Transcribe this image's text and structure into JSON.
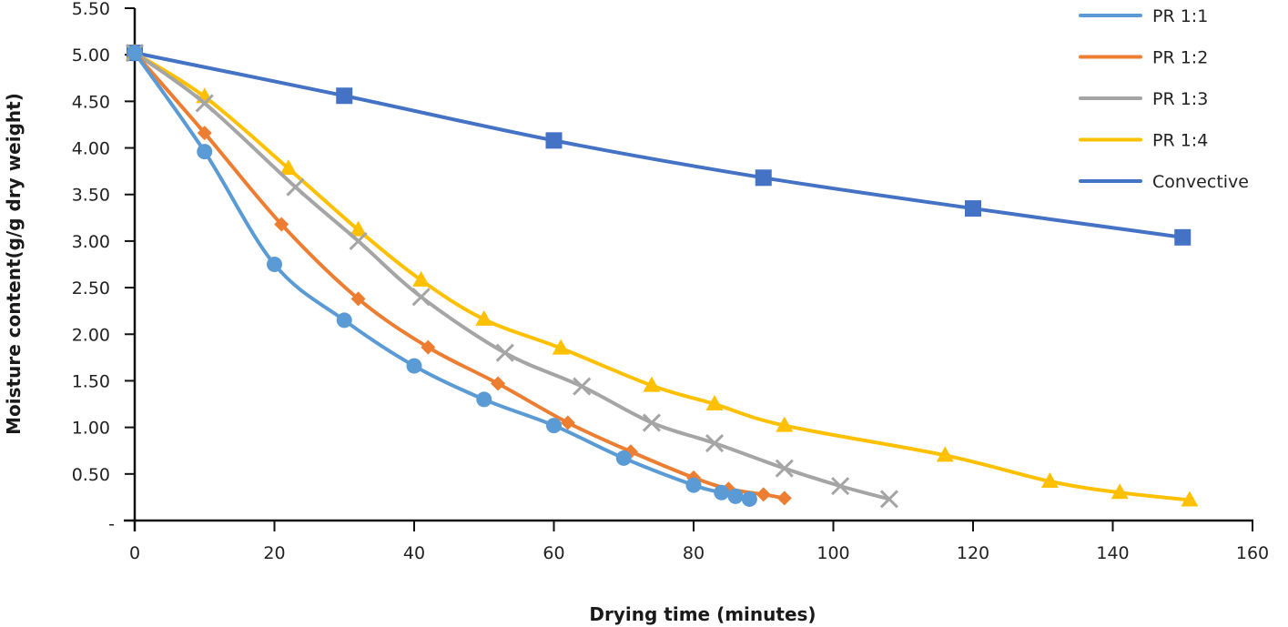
{
  "chart_data": {
    "type": "line",
    "title": "",
    "xlabel": "Drying time (minutes)",
    "ylabel": "Moisture content(g/g dry weight)",
    "xlim": [
      0,
      160
    ],
    "ylim": [
      0,
      5.5
    ],
    "x_ticks": [
      0,
      20,
      40,
      60,
      80,
      100,
      120,
      140,
      160
    ],
    "x_tick_labels": [
      "0",
      "20",
      "40",
      "60",
      "80",
      "100",
      "120",
      "140",
      "160"
    ],
    "y_ticks": [
      0,
      0.5,
      1.0,
      1.5,
      2.0,
      2.5,
      3.0,
      3.5,
      4.0,
      4.5,
      5.0,
      5.5
    ],
    "y_tick_labels": [
      "-",
      "0.50",
      "1.00",
      "1.50",
      "2.00",
      "2.50",
      "3.00",
      "3.50",
      "4.00",
      "4.50",
      "5.00",
      "5.50"
    ],
    "grid": false,
    "legend_position": "top-right",
    "smoothed": true,
    "series": [
      {
        "name": "PR 1:1",
        "color": "#5B9BD5",
        "marker": "circle",
        "x": [
          0,
          10,
          20,
          30,
          40,
          50,
          60,
          70,
          80,
          84,
          86,
          88
        ],
        "y": [
          5.02,
          3.96,
          2.75,
          2.15,
          1.66,
          1.3,
          1.02,
          0.67,
          0.38,
          0.3,
          0.26,
          0.23
        ]
      },
      {
        "name": "PR 1:2",
        "color": "#ED7D31",
        "marker": "diamond",
        "x": [
          0,
          10,
          21,
          32,
          42,
          52,
          62,
          71,
          80,
          85,
          90,
          93
        ],
        "y": [
          5.02,
          4.16,
          3.18,
          2.38,
          1.86,
          1.47,
          1.05,
          0.74,
          0.46,
          0.34,
          0.28,
          0.24
        ]
      },
      {
        "name": "PR 1:3",
        "color": "#A5A5A5",
        "marker": "x",
        "x": [
          0,
          10,
          23,
          32,
          41,
          53,
          64,
          74,
          83,
          93,
          101,
          108
        ],
        "y": [
          5.02,
          4.48,
          3.58,
          3.0,
          2.4,
          1.8,
          1.44,
          1.05,
          0.83,
          0.56,
          0.37,
          0.23
        ]
      },
      {
        "name": "PR 1:4",
        "color": "#FFC000",
        "marker": "triangle",
        "x": [
          0,
          10,
          22,
          32,
          41,
          50,
          61,
          74,
          83,
          93,
          116,
          131,
          141,
          151
        ],
        "y": [
          5.02,
          4.55,
          3.78,
          3.12,
          2.58,
          2.16,
          1.85,
          1.45,
          1.25,
          1.02,
          0.7,
          0.42,
          0.3,
          0.22
        ]
      },
      {
        "name": "Convective",
        "color": "#4472C4",
        "marker": "square",
        "x": [
          0,
          30,
          60,
          90,
          120,
          150
        ],
        "y": [
          5.02,
          4.56,
          4.08,
          3.68,
          3.35,
          3.04
        ]
      }
    ]
  }
}
